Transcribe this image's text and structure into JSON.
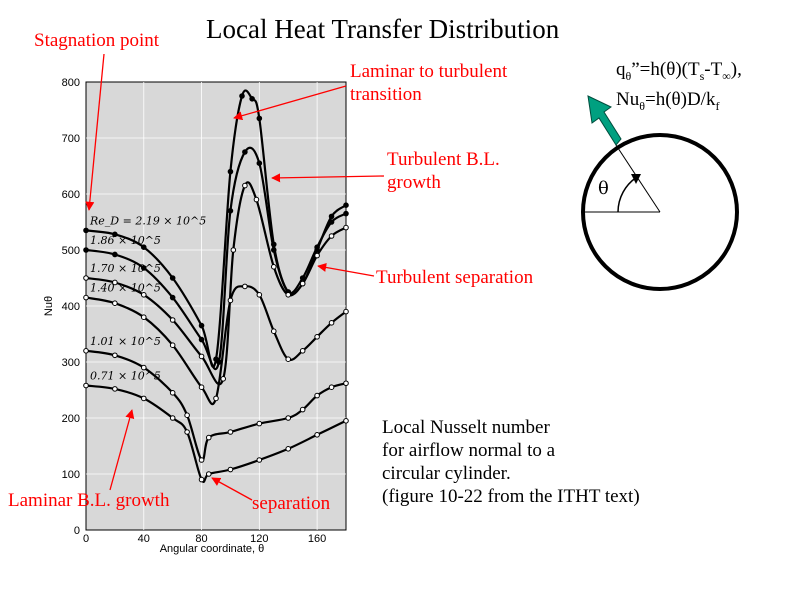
{
  "title": "Local Heat Transfer Distribution",
  "annotations": {
    "stagnation": "Stagnation point",
    "transition_1": "Laminar to turbulent",
    "transition_2": "transition",
    "turb_growth_1": "Turbulent B.L.",
    "turb_growth_2": "growth",
    "turb_sep": "Turbulent separation",
    "laminar_growth": "Laminar B.L. growth",
    "separation": "separation"
  },
  "equation": {
    "q": "q",
    "theta_sym": "θ",
    "eq1_mid": "”=h(θ)(T",
    "s": "s",
    "dash": "-T",
    "inf": "∞",
    "close": "),",
    "nu": "Nu",
    "eq2_mid": "=h(θ)D/k",
    "f": "f"
  },
  "diagram": {
    "theta_label": "θ"
  },
  "caption": {
    "line1": "Local Nusselt number",
    "line2": "for airflow normal to a",
    "line3": "circular cylinder.",
    "line4": "(figure 10-22 from the ITHT text)"
  },
  "colors": {
    "annotation": "#ff0000",
    "arrow": "#00a080",
    "plot_bg": "#d8d8d8"
  },
  "chart_data": {
    "type": "line",
    "xlabel": "Angular coordinate, θ",
    "ylabel": "Nuθ",
    "xlim": [
      0,
      180
    ],
    "ylim": [
      0,
      800
    ],
    "xticks": [
      0,
      40,
      80,
      120,
      160
    ],
    "yticks": [
      0,
      100,
      200,
      300,
      400,
      500,
      600,
      700,
      800
    ],
    "series": [
      {
        "name": "Re_D = 2.19 × 10^5",
        "marker": "filled",
        "x": [
          0,
          20,
          40,
          60,
          80,
          90,
          100,
          108,
          115,
          120,
          130,
          140,
          150,
          160,
          170,
          180
        ],
        "y": [
          535,
          528,
          505,
          450,
          365,
          305,
          640,
          775,
          770,
          735,
          510,
          425,
          440,
          500,
          560,
          580
        ]
      },
      {
        "name": "1.86 × 10^5",
        "marker": "filled",
        "x": [
          0,
          20,
          40,
          60,
          80,
          92,
          100,
          110,
          120,
          130,
          140,
          150,
          160,
          170,
          180
        ],
        "y": [
          500,
          492,
          468,
          415,
          340,
          300,
          570,
          675,
          655,
          500,
          425,
          450,
          505,
          550,
          565
        ]
      },
      {
        "name": "1.70 × 10^5",
        "marker": "open",
        "x": [
          0,
          20,
          40,
          60,
          80,
          95,
          102,
          110,
          118,
          130,
          140,
          150,
          160,
          170,
          180
        ],
        "y": [
          450,
          442,
          420,
          375,
          310,
          270,
          500,
          615,
          590,
          470,
          420,
          440,
          490,
          525,
          540
        ]
      },
      {
        "name": "1.40 × 10^5",
        "marker": "open",
        "x": [
          0,
          20,
          40,
          60,
          80,
          90,
          100,
          110,
          120,
          130,
          140,
          150,
          160,
          170,
          180
        ],
        "y": [
          415,
          405,
          380,
          330,
          255,
          235,
          410,
          435,
          420,
          355,
          305,
          320,
          345,
          370,
          390
        ]
      },
      {
        "name": "1.01 × 10^5",
        "marker": "open",
        "x": [
          0,
          20,
          40,
          60,
          70,
          80,
          85,
          100,
          120,
          140,
          150,
          160,
          170,
          180
        ],
        "y": [
          320,
          312,
          290,
          245,
          205,
          125,
          165,
          175,
          190,
          200,
          215,
          240,
          255,
          262
        ]
      },
      {
        "name": "0.71 × 10^5",
        "marker": "open",
        "x": [
          0,
          20,
          40,
          60,
          70,
          80,
          85,
          100,
          120,
          140,
          160,
          180
        ],
        "y": [
          258,
          252,
          235,
          200,
          175,
          90,
          100,
          108,
          125,
          145,
          170,
          195
        ]
      }
    ]
  }
}
